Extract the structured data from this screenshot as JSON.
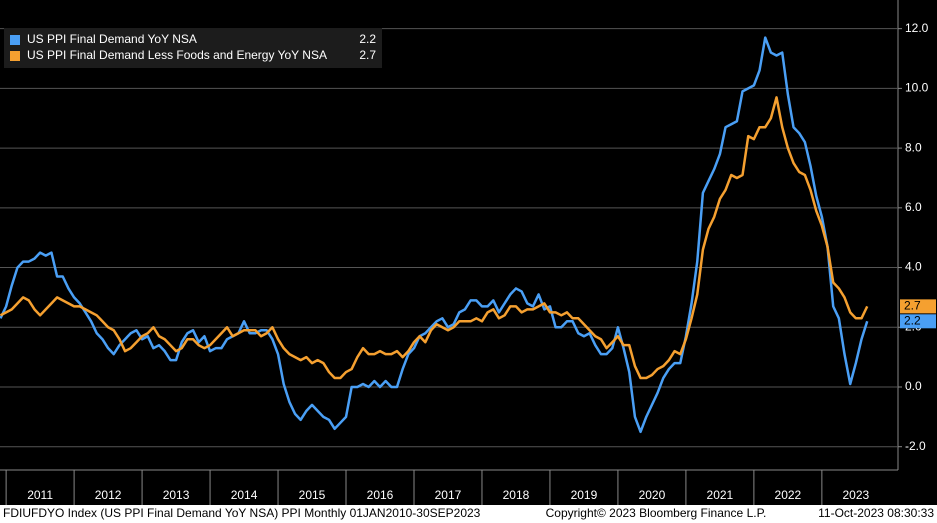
{
  "chart_data": {
    "type": "line",
    "footer_left": "FDIUFDYO Index (US PPI Final Demand YoY NSA) PPI  Monthly 01JAN2010-30SEP2023",
    "footer_center": "Copyright© 2023 Bloomberg Finance L.P.",
    "footer_right": "11-Oct-2023 08:30:33",
    "xlim": [
      2010.91,
      2024.12
    ],
    "ylim": [
      -2.78,
      12.96
    ],
    "yticks": [
      {
        "value": -2,
        "label": "-2.0"
      },
      {
        "value": 0,
        "label": "0.0"
      },
      {
        "value": 2,
        "label": "2.0"
      },
      {
        "value": 4,
        "label": "4.0"
      },
      {
        "value": 6,
        "label": "6.0"
      },
      {
        "value": 8,
        "label": "8.0"
      },
      {
        "value": 10,
        "label": "10.0"
      },
      {
        "value": 12,
        "label": "12.0"
      }
    ],
    "xticks": [
      {
        "value": 2011.5,
        "label": "2011"
      },
      {
        "value": 2012.5,
        "label": "2012"
      },
      {
        "value": 2013.5,
        "label": "2013"
      },
      {
        "value": 2014.5,
        "label": "2014"
      },
      {
        "value": 2015.5,
        "label": "2015"
      },
      {
        "value": 2016.5,
        "label": "2016"
      },
      {
        "value": 2017.5,
        "label": "2017"
      },
      {
        "value": 2018.5,
        "label": "2018"
      },
      {
        "value": 2019.5,
        "label": "2019"
      },
      {
        "value": 2020.5,
        "label": "2020"
      },
      {
        "value": 2021.5,
        "label": "2021"
      },
      {
        "value": 2022.5,
        "label": "2022"
      },
      {
        "value": 2023.5,
        "label": "2023"
      }
    ],
    "grid": true,
    "legend": "top-left",
    "x": [
      2010.917,
      2011.0,
      2011.083,
      2011.167,
      2011.25,
      2011.333,
      2011.417,
      2011.5,
      2011.583,
      2011.667,
      2011.75,
      2011.833,
      2011.917,
      2012.0,
      2012.083,
      2012.167,
      2012.25,
      2012.333,
      2012.417,
      2012.5,
      2012.583,
      2012.667,
      2012.75,
      2012.833,
      2012.917,
      2013.0,
      2013.083,
      2013.167,
      2013.25,
      2013.333,
      2013.417,
      2013.5,
      2013.583,
      2013.667,
      2013.75,
      2013.833,
      2013.917,
      2014.0,
      2014.083,
      2014.167,
      2014.25,
      2014.333,
      2014.417,
      2014.5,
      2014.583,
      2014.667,
      2014.75,
      2014.833,
      2014.917,
      2015.0,
      2015.083,
      2015.167,
      2015.25,
      2015.333,
      2015.417,
      2015.5,
      2015.583,
      2015.667,
      2015.75,
      2015.833,
      2015.917,
      2016.0,
      2016.083,
      2016.167,
      2016.25,
      2016.333,
      2016.417,
      2016.5,
      2016.583,
      2016.667,
      2016.75,
      2016.833,
      2016.917,
      2017.0,
      2017.083,
      2017.167,
      2017.25,
      2017.333,
      2017.417,
      2017.5,
      2017.583,
      2017.667,
      2017.75,
      2017.833,
      2017.917,
      2018.0,
      2018.083,
      2018.167,
      2018.25,
      2018.333,
      2018.417,
      2018.5,
      2018.583,
      2018.667,
      2018.75,
      2018.833,
      2018.917,
      2019.0,
      2019.083,
      2019.167,
      2019.25,
      2019.333,
      2019.417,
      2019.5,
      2019.583,
      2019.667,
      2019.75,
      2019.833,
      2019.917,
      2020.0,
      2020.083,
      2020.167,
      2020.25,
      2020.333,
      2020.417,
      2020.5,
      2020.583,
      2020.667,
      2020.75,
      2020.833,
      2020.917,
      2021.0,
      2021.083,
      2021.167,
      2021.25,
      2021.333,
      2021.417,
      2021.5,
      2021.583,
      2021.667,
      2021.75,
      2021.833,
      2021.917,
      2022.0,
      2022.083,
      2022.167,
      2022.25,
      2022.333,
      2022.417,
      2022.5,
      2022.583,
      2022.667,
      2022.75,
      2022.833,
      2022.917,
      2023.0,
      2023.083,
      2023.167,
      2023.25,
      2023.333,
      2023.417,
      2023.5,
      2023.583,
      2023.667
    ],
    "series": [
      {
        "name": "US PPI Final Demand YoY NSA",
        "color": "#4a9ff5",
        "values": [
          2.3,
          2.7,
          3.4,
          4.0,
          4.2,
          4.2,
          4.3,
          4.5,
          4.4,
          4.5,
          3.7,
          3.7,
          3.3,
          3.0,
          2.8,
          2.5,
          2.2,
          1.8,
          1.6,
          1.3,
          1.1,
          1.4,
          1.6,
          1.8,
          1.9,
          1.6,
          1.7,
          1.3,
          1.4,
          1.2,
          0.9,
          0.9,
          1.5,
          1.8,
          1.9,
          1.5,
          1.7,
          1.2,
          1.3,
          1.3,
          1.6,
          1.7,
          1.8,
          2.2,
          1.8,
          1.8,
          1.9,
          1.9,
          1.6,
          1.1,
          0.1,
          -0.5,
          -0.9,
          -1.1,
          -0.8,
          -0.6,
          -0.8,
          -1.0,
          -1.1,
          -1.4,
          -1.2,
          -1.0,
          0.0,
          0.0,
          0.1,
          0.0,
          0.2,
          0.0,
          0.2,
          0.0,
          0.0,
          0.6,
          1.1,
          1.3,
          1.7,
          1.8,
          2.0,
          2.2,
          2.3,
          2.0,
          2.1,
          2.5,
          2.6,
          2.9,
          2.9,
          2.7,
          2.7,
          2.9,
          2.5,
          2.8,
          3.1,
          3.3,
          3.2,
          2.8,
          2.7,
          3.1,
          2.6,
          2.7,
          2.0,
          2.0,
          2.2,
          2.2,
          1.8,
          1.7,
          1.8,
          1.4,
          1.1,
          1.1,
          1.3,
          2.0,
          1.3,
          0.5,
          -1.0,
          -1.5,
          -1.0,
          -0.6,
          -0.2,
          0.3,
          0.6,
          0.8,
          0.8,
          1.7,
          2.8,
          4.2,
          6.5,
          6.9,
          7.3,
          7.8,
          8.7,
          8.8,
          8.9,
          9.9,
          10.0,
          10.1,
          10.6,
          11.7,
          11.2,
          11.1,
          11.2,
          9.8,
          8.7,
          8.5,
          8.2,
          7.4,
          6.4,
          5.7,
          4.7,
          2.7,
          2.3,
          1.1,
          0.1,
          0.8,
          1.6,
          2.2
        ]
      },
      {
        "name": "US PPI Final Demand Less Foods and Energy YoY NSA",
        "color": "#f5a030",
        "values": [
          2.4,
          2.5,
          2.6,
          2.8,
          3.0,
          2.9,
          2.6,
          2.4,
          2.6,
          2.8,
          3.0,
          2.9,
          2.8,
          2.7,
          2.7,
          2.6,
          2.5,
          2.4,
          2.2,
          2.0,
          1.9,
          1.6,
          1.2,
          1.3,
          1.5,
          1.7,
          1.8,
          2.0,
          1.7,
          1.6,
          1.4,
          1.2,
          1.3,
          1.6,
          1.6,
          1.4,
          1.3,
          1.4,
          1.6,
          1.8,
          2.0,
          1.7,
          1.8,
          1.9,
          1.9,
          1.9,
          1.7,
          1.8,
          2.0,
          1.6,
          1.3,
          1.1,
          1.0,
          0.9,
          1.0,
          0.8,
          0.9,
          0.8,
          0.5,
          0.3,
          0.3,
          0.5,
          0.6,
          1.0,
          1.3,
          1.1,
          1.1,
          1.2,
          1.1,
          1.1,
          1.2,
          1.0,
          1.2,
          1.5,
          1.7,
          1.5,
          1.9,
          2.1,
          2.0,
          1.9,
          2.0,
          2.2,
          2.2,
          2.2,
          2.3,
          2.2,
          2.5,
          2.6,
          2.3,
          2.4,
          2.7,
          2.7,
          2.5,
          2.6,
          2.6,
          2.7,
          2.8,
          2.5,
          2.5,
          2.4,
          2.5,
          2.3,
          2.3,
          2.1,
          1.9,
          1.7,
          1.6,
          1.3,
          1.5,
          1.7,
          1.4,
          1.4,
          0.7,
          0.3,
          0.3,
          0.4,
          0.6,
          0.7,
          0.9,
          1.2,
          1.1,
          1.6,
          2.3,
          3.1,
          4.6,
          5.3,
          5.7,
          6.3,
          6.6,
          7.1,
          7.0,
          7.1,
          8.4,
          8.3,
          8.7,
          8.7,
          9.0,
          9.7,
          8.7,
          8.0,
          7.5,
          7.2,
          7.1,
          6.6,
          5.9,
          5.4,
          4.7,
          3.5,
          3.3,
          3.0,
          2.5,
          2.3,
          2.3,
          2.7
        ]
      }
    ]
  }
}
